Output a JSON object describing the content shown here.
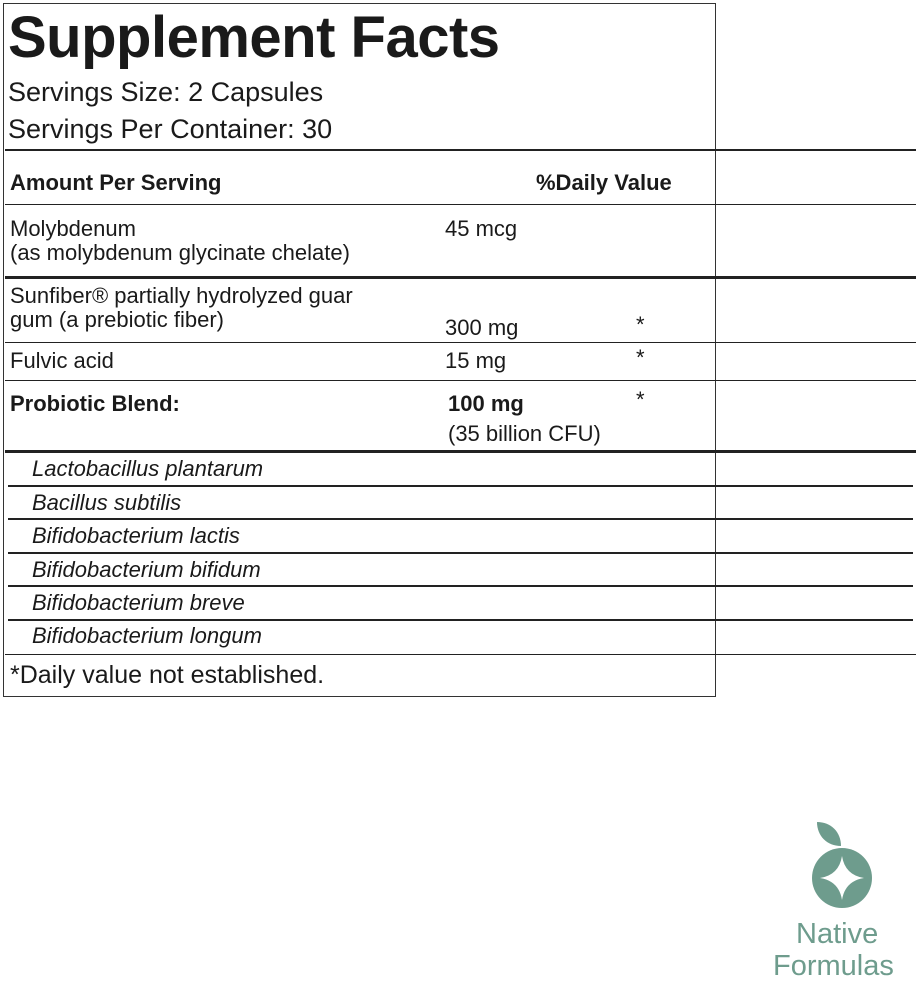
{
  "title": "Supplement Facts",
  "serving_size": "Servings Size: 2 Capsules",
  "servings_per_container": "Servings Per Container: 30",
  "header": {
    "amount": "Amount Per Serving",
    "dv": "%Daily Value"
  },
  "rows": [
    {
      "name": "Molybdenum",
      "sub": "(as molybdenum glycinate chelate)",
      "amount": "45 mcg",
      "dv": ""
    },
    {
      "name": "Sunfiber® partially hydrolyzed guar",
      "sub": "gum (a prebiotic fiber)",
      "amount": "300 mg",
      "dv": "*"
    },
    {
      "name": "Fulvic acid",
      "amount": "15 mg",
      "dv": "*"
    },
    {
      "name": "Probiotic Blend:",
      "amount": "100 mg",
      "sub_amount": "(35 billion CFU)",
      "dv": "*"
    }
  ],
  "strains": [
    "Lactobacillus plantarum",
    "Bacillus subtilis",
    "Bifidobacterium lactis",
    "Bifidobacterium bifidum",
    "Bifidobacterium breve",
    "Bifidobacterium longum"
  ],
  "footnote": "*Daily value not established.",
  "brand": {
    "line1": "Native",
    "line2": "Formulas",
    "color": "#6e9c8d"
  }
}
